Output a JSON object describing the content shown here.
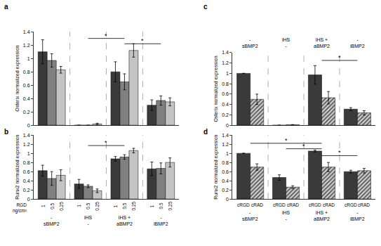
{
  "chart_data": [
    {
      "type": "bar",
      "label": "a",
      "y_label": "Osterix normalized expression",
      "categories": [
        null,
        null,
        null,
        null
      ],
      "series": [
        {
          "color": "#3a3a3a",
          "marker": "solid",
          "values": [
            1.1,
            0,
            0.8,
            0.3
          ],
          "errors": [
            0.18,
            0,
            0.15,
            0.08
          ]
        },
        {
          "color": "#808080",
          "marker": "solid",
          "values": [
            0.97,
            0,
            0.65,
            0.37
          ],
          "errors": [
            0.1,
            0,
            0.12,
            0.07
          ]
        },
        {
          "color": "#c4c4c4",
          "marker": "solid",
          "values": [
            0.83,
            0.02,
            1.12,
            0.35
          ],
          "errors": [
            0.05,
            0.01,
            0.1,
            0.06
          ]
        }
      ],
      "ylim": [
        0,
        1.4
      ],
      "yticks": [
        0,
        0.2,
        0.4,
        0.6,
        0.8,
        1,
        1.2,
        1.4
      ],
      "tick_labels": "y",
      "significance": [
        {
          "from": 1,
          "to": 2,
          "y": 1.3,
          "label": "*"
        },
        {
          "from": 2,
          "to": 3,
          "y": 1.22,
          "label": "*"
        }
      ]
    },
    {
      "type": "bar",
      "label": "b",
      "y_label": "Runx2 normalized expression",
      "x_label": "RGD\nng/cm²",
      "categories": [
        "-\nsBMP2",
        "iHS\n-",
        "iHS +\naBMP2",
        "-\niBMP2"
      ],
      "series": [
        {
          "name": "1",
          "color": "#3a3a3a",
          "marker": "solid",
          "values": [
            0.62,
            0.33,
            0.88,
            0.66
          ],
          "errors": [
            0.12,
            0.1,
            0.05,
            0.15
          ]
        },
        {
          "name": "0.5",
          "color": "#808080",
          "marker": "solid",
          "values": [
            0.45,
            0.28,
            0.92,
            0.67
          ],
          "errors": [
            0.15,
            0.03,
            0.05,
            0.12
          ]
        },
        {
          "name": "0.25",
          "color": "#c4c4c4",
          "marker": "solid",
          "values": [
            0.52,
            0.18,
            1.06,
            0.8
          ],
          "errors": [
            0.12,
            0.04,
            0.05,
            0.1
          ]
        }
      ],
      "ylim": [
        0,
        1.4
      ],
      "yticks": [
        0,
        0.2,
        0.4,
        0.6,
        0.8,
        1,
        1.2,
        1.4
      ],
      "significance": [
        {
          "from": 1,
          "to": 2,
          "y": 1.17,
          "label": "*"
        }
      ]
    },
    {
      "type": "bar",
      "label": "c",
      "y_label": "Osterix normalized expression",
      "categories": [
        "-\nsBMP2",
        "iHS\n-",
        "iHS +\naBMP2",
        "-\niBMP2"
      ],
      "series": [
        {
          "color": "#3a3a3a",
          "marker": "solid",
          "values": [
            1.0,
            0,
            0.97,
            0.31
          ],
          "errors": [
            0,
            0,
            0.18,
            0.03
          ]
        },
        {
          "color": "#555555",
          "marker": "hatched",
          "values": [
            0.5,
            0.01,
            0.53,
            0.24
          ],
          "errors": [
            0.1,
            0,
            0.12,
            0.04
          ]
        }
      ],
      "ylim": [
        0,
        1.4
      ],
      "yticks": [
        0,
        0.2,
        0.4,
        0.6,
        0.8,
        1,
        1.2,
        1.4
      ],
      "significance": [
        {
          "from": 2,
          "to": 3,
          "y": 1.25,
          "label": "*"
        }
      ]
    },
    {
      "type": "bar",
      "label": "d",
      "y_label": "Runx2 normalized expression",
      "categories": [
        "-\nsBMP2",
        "iHS\n-",
        "iHS +\naBMP2",
        "-\niBMP2"
      ],
      "series": [
        {
          "name": "cRGD",
          "color": "#3a3a3a",
          "marker": "solid",
          "values": [
            1.0,
            0.47,
            1.05,
            0.6
          ],
          "errors": [
            0,
            0.06,
            0.02,
            0.03
          ]
        },
        {
          "name": "cRAD",
          "color": "#555555",
          "marker": "hatched",
          "values": [
            0.7,
            0.26,
            0.7,
            0.62
          ],
          "errors": [
            0.07,
            0.03,
            0.1,
            0.05
          ]
        }
      ],
      "ylim": [
        0,
        1.4
      ],
      "yticks": [
        0,
        0.2,
        0.4,
        0.6,
        0.8,
        1,
        1.2,
        1.4
      ],
      "significance": [
        {
          "from": 0,
          "to": 2,
          "y": 1.22,
          "label": "*"
        },
        {
          "from": 1,
          "to": 2,
          "y": 1.1,
          "label": "*"
        },
        {
          "from": 2,
          "to": 3,
          "y": 0.95,
          "label": "*"
        }
      ]
    }
  ]
}
